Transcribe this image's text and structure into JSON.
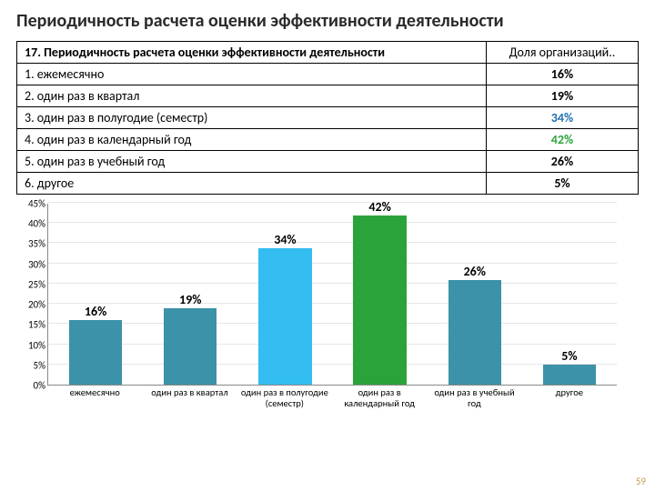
{
  "title": "Периодичность расчета оценки эффективности деятельности",
  "table": {
    "header_left": "17. Периодичность расчета оценки эффективности деятельности",
    "header_right": "Доля организаций..",
    "rows": [
      {
        "label": "1. ежемесячно",
        "value": "16%",
        "color": "#000000"
      },
      {
        "label": "2. один раз в квартал",
        "value": "19%",
        "color": "#000000"
      },
      {
        "label": "3. один раз в полугодие (семестр)",
        "value": "34%",
        "color": "#1f6fb0"
      },
      {
        "label": "4. один раз в календарный год",
        "value": "42%",
        "color": "#2aa43a"
      },
      {
        "label": "5. один раз в учебный год",
        "value": "26%",
        "color": "#000000"
      },
      {
        "label": "6. другое",
        "value": "5%",
        "color": "#000000"
      }
    ]
  },
  "chart": {
    "type": "bar",
    "ylim": [
      0,
      45
    ],
    "ytick_step": 5,
    "yticks": [
      "0%",
      "5%",
      "10%",
      "15%",
      "20%",
      "25%",
      "30%",
      "35%",
      "40%",
      "45%"
    ],
    "grid_color": "#e6e6e6",
    "background_color": "#ffffff",
    "bar_width_pct": 56,
    "value_label_fontsize": 14,
    "xlabel_fontsize": 10.5,
    "series": [
      {
        "label": "ежемесячно",
        "value": 16,
        "display": "16%",
        "color": "#3c92a8"
      },
      {
        "label": "один раз в квартал",
        "value": 19,
        "display": "19%",
        "color": "#3c92a8"
      },
      {
        "label": "один раз в полугодие (семестр)",
        "value": 34,
        "display": "34%",
        "color": "#34bdf0"
      },
      {
        "label": "один раз в календарный год",
        "value": 42,
        "display": "42%",
        "color": "#2aa43a"
      },
      {
        "label": "один раз в учебный год",
        "value": 26,
        "display": "26%",
        "color": "#3c92a8"
      },
      {
        "label": "другое",
        "value": 5,
        "display": "5%",
        "color": "#3c92a8"
      }
    ]
  },
  "pagenum": "59"
}
